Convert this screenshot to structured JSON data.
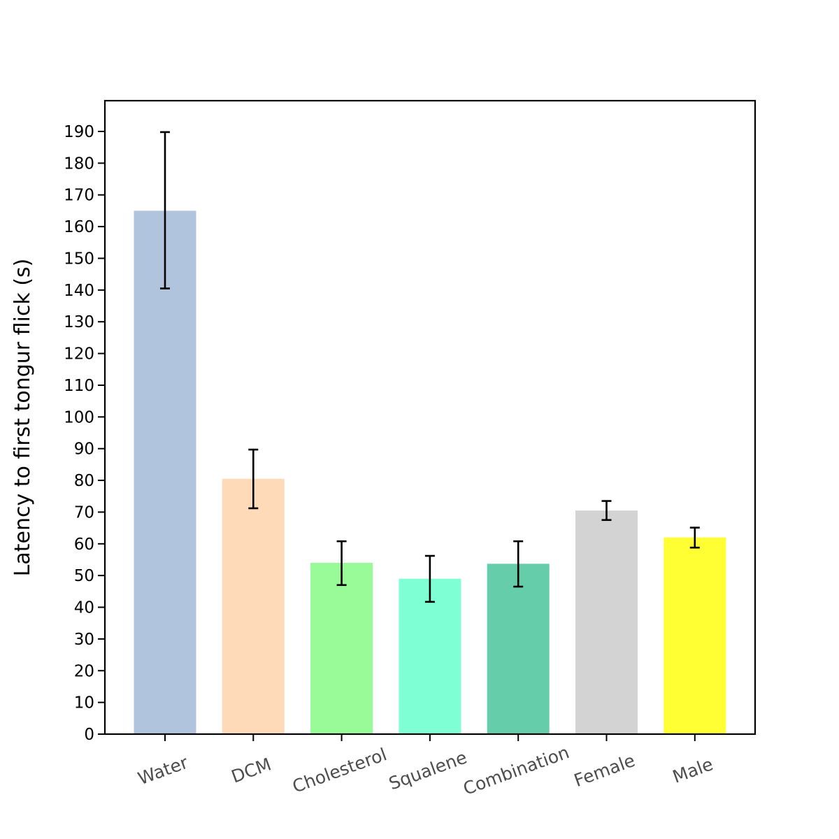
{
  "chart_data": {
    "type": "bar",
    "title": "",
    "xlabel": "",
    "ylabel": "Latency to first tongur flick (s)",
    "categories": [
      "Water",
      "DCM",
      "Cholesterol",
      "Squalene",
      "Combination",
      "Female",
      "Male"
    ],
    "values": [
      165,
      80.5,
      54,
      49,
      53.7,
      70.5,
      62
    ],
    "error_low": [
      140.5,
      71.2,
      47,
      41.7,
      46.5,
      67.5,
      58.8
    ],
    "error_high": [
      189.8,
      89.7,
      60.8,
      56.2,
      60.8,
      73.5,
      65.1
    ],
    "colors": [
      "#b0c4de",
      "#ffdab9",
      "#98fb98",
      "#7fffd4",
      "#66cdaa",
      "#d3d3d3",
      "#ffff33"
    ],
    "error_bar_color": "#000000",
    "yticks": [
      0,
      10,
      20,
      30,
      40,
      50,
      60,
      70,
      80,
      90,
      100,
      110,
      120,
      130,
      140,
      150,
      160,
      170,
      180,
      190
    ],
    "ylim": [
      0,
      199.7
    ],
    "grid": false,
    "legend": "none"
  }
}
